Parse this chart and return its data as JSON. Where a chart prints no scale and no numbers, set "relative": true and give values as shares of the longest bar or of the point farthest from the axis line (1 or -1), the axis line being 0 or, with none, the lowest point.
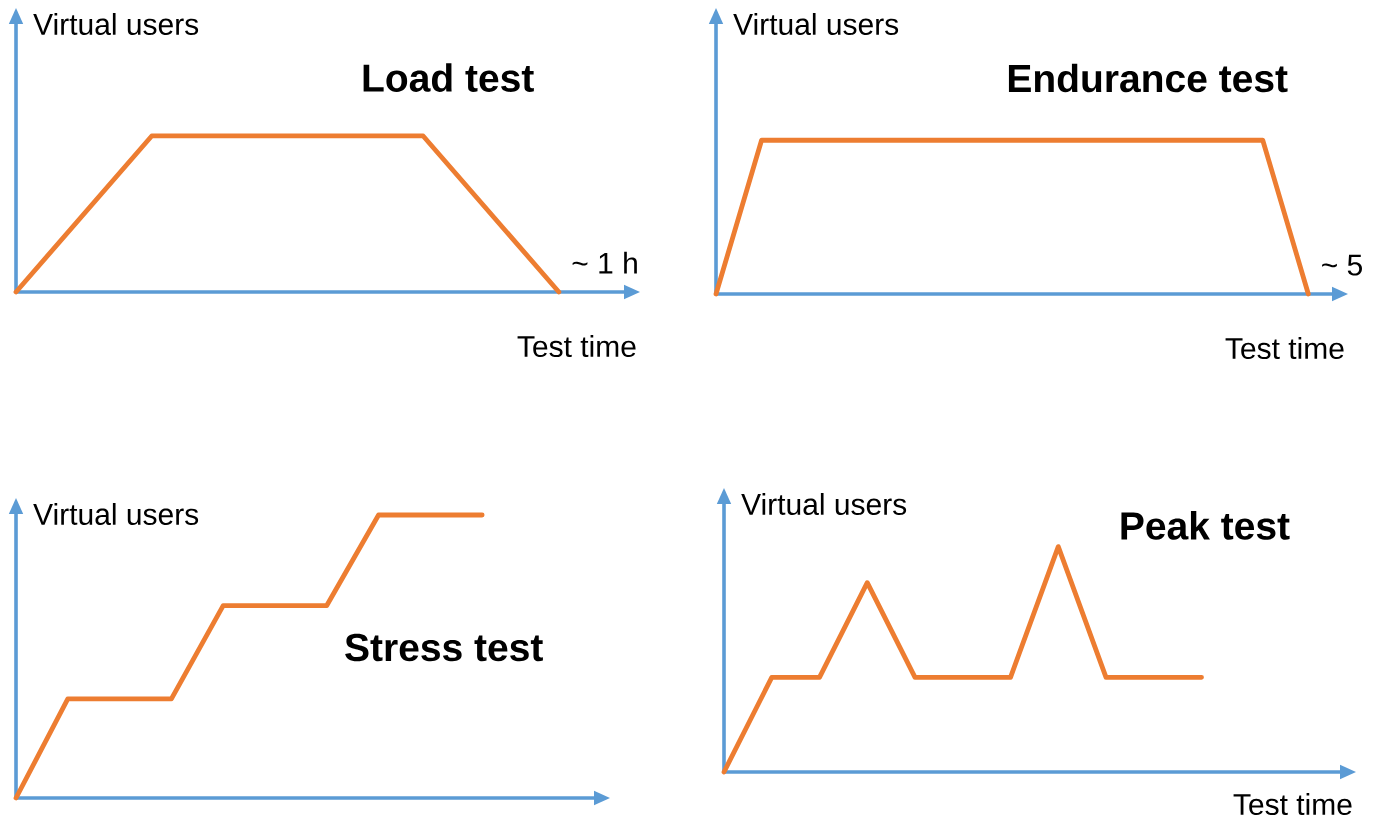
{
  "chart_data": [
    {
      "type": "line",
      "title": "Load test",
      "xlabel": "Test time",
      "ylabel": "Virtual users",
      "annotations": [
        "~ 1 h"
      ],
      "relative": true,
      "categories": [
        null,
        null,
        null,
        null,
        null
      ],
      "values": [
        0,
        1,
        1,
        1,
        0
      ],
      "color": "#ed7d31"
    },
    {
      "type": "line",
      "title": "Endurance test",
      "xlabel": "Test time",
      "ylabel": "Virtual users",
      "annotations": [
        "~ 5"
      ],
      "relative": true,
      "categories": [
        null,
        null,
        null,
        null,
        null,
        null,
        null,
        null,
        null,
        null,
        null,
        null,
        null,
        null
      ],
      "values": [
        0,
        1,
        1,
        1,
        1,
        1,
        1,
        1,
        1,
        1,
        1,
        1,
        1,
        0
      ],
      "color": "#ed7d31"
    },
    {
      "type": "line",
      "title": "Stress test",
      "ylabel": "Virtual users",
      "relative": true,
      "categories": [
        null,
        null,
        null,
        null,
        null,
        null,
        null,
        null,
        null,
        null
      ],
      "values": [
        0,
        0.35,
        0.35,
        0.35,
        0.68,
        0.68,
        0.68,
        1,
        1,
        1
      ],
      "color": "#ed7d31"
    },
    {
      "type": "line",
      "title": "Peak test",
      "xlabel": "Test time",
      "ylabel": "Virtual users",
      "relative": true,
      "categories": [
        null,
        null,
        null,
        null,
        null,
        null,
        null,
        null,
        null,
        null,
        null
      ],
      "values": [
        0,
        0.42,
        0.42,
        0.84,
        0.42,
        0.42,
        0.42,
        1,
        0.42,
        0.42,
        0.42
      ],
      "color": "#ed7d31"
    }
  ]
}
